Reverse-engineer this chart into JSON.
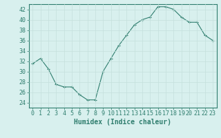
{
  "x": [
    0,
    1,
    2,
    3,
    4,
    5,
    6,
    7,
    8,
    9,
    10,
    11,
    12,
    13,
    14,
    15,
    16,
    17,
    18,
    19,
    20,
    21,
    22,
    23
  ],
  "y": [
    31.5,
    32.5,
    30.5,
    27.5,
    27.0,
    27.0,
    25.5,
    24.5,
    24.5,
    30.0,
    32.5,
    35.0,
    37.0,
    39.0,
    40.0,
    40.5,
    42.5,
    42.5,
    42.0,
    40.5,
    39.5,
    39.5,
    37.0,
    36.0
  ],
  "line_color": "#2e7d6e",
  "marker": "+",
  "marker_color": "#2e7d6e",
  "bg_color": "#d8f0ee",
  "grid_color": "#c4e0dc",
  "tick_color": "#2e7d6e",
  "xlabel": "Humidex (Indice chaleur)",
  "xlim": [
    -0.5,
    23.5
  ],
  "ylim": [
    23,
    43
  ],
  "yticks": [
    24,
    26,
    28,
    30,
    32,
    34,
    36,
    38,
    40,
    42
  ],
  "xticks": [
    0,
    1,
    2,
    3,
    4,
    5,
    6,
    7,
    8,
    9,
    10,
    11,
    12,
    13,
    14,
    15,
    16,
    17,
    18,
    19,
    20,
    21,
    22,
    23
  ],
  "label_fontsize": 7,
  "tick_fontsize": 6
}
